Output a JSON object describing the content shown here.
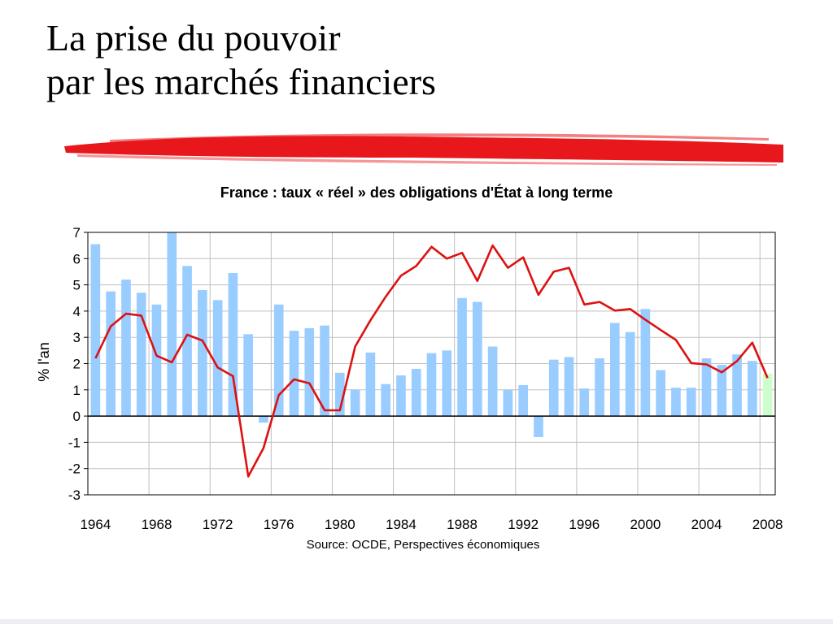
{
  "slide": {
    "title_line1": "La prise du pouvoir",
    "title_line2": "par les marchés financiers",
    "accent_color": "#e8171c"
  },
  "chart_data": {
    "type": "bar",
    "title": "France : taux « réel » des obligations d'État à long terme",
    "ylabel": "% l'an",
    "xlabel": "",
    "source": "Source: OCDE, Perspectives économiques",
    "ylim": [
      -3,
      7
    ],
    "yticks": [
      7,
      6,
      5,
      4,
      3,
      2,
      1,
      0,
      -1,
      -2,
      -3
    ],
    "xtick_labels": [
      "1964",
      "1968",
      "1972",
      "1976",
      "1980",
      "1984",
      "1988",
      "1992",
      "1996",
      "2000",
      "2004",
      "2008"
    ],
    "grid": true,
    "years": [
      1964,
      1965,
      1966,
      1967,
      1968,
      1969,
      1970,
      1971,
      1972,
      1973,
      1974,
      1975,
      1976,
      1977,
      1978,
      1979,
      1980,
      1981,
      1982,
      1983,
      1984,
      1985,
      1986,
      1987,
      1988,
      1989,
      1990,
      1991,
      1992,
      1993,
      1994,
      1995,
      1996,
      1997,
      1998,
      1999,
      2000,
      2001,
      2002,
      2003,
      2004,
      2005,
      2006,
      2007,
      2008
    ],
    "series": [
      {
        "kind": "bar",
        "color": "#99ccff",
        "last_color": "#ccffcc",
        "values": [
          6.55,
          4.75,
          5.2,
          4.7,
          4.25,
          7.0,
          5.72,
          4.8,
          4.42,
          5.45,
          3.12,
          -0.25,
          4.25,
          3.25,
          3.35,
          3.45,
          1.65,
          1.0,
          2.42,
          1.22,
          1.55,
          1.8,
          2.4,
          2.5,
          4.5,
          4.35,
          2.65,
          1.0,
          1.18,
          -0.8,
          2.15,
          2.25,
          1.05,
          2.2,
          3.55,
          3.2,
          4.08,
          1.75,
          1.08,
          1.08,
          2.2,
          1.95,
          2.35,
          2.1,
          1.62
        ]
      },
      {
        "kind": "line",
        "color": "#dd1111",
        "values": [
          2.2,
          3.42,
          3.9,
          3.83,
          2.3,
          2.05,
          3.1,
          2.88,
          1.85,
          1.52,
          -2.3,
          -1.22,
          0.8,
          1.4,
          1.25,
          0.22,
          0.22,
          2.65,
          3.65,
          4.55,
          5.35,
          5.72,
          6.45,
          6.0,
          6.22,
          5.15,
          6.5,
          5.65,
          6.05,
          4.62,
          5.5,
          5.65,
          4.25,
          4.35,
          4.02,
          4.08,
          3.67,
          3.28,
          2.9,
          2.02,
          1.97,
          1.67,
          2.1,
          2.8,
          1.45
        ]
      }
    ]
  }
}
